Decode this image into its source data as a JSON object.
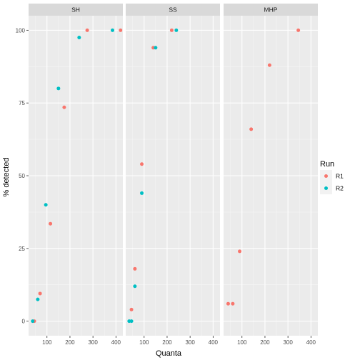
{
  "chart_data": {
    "type": "scatter",
    "xlabel": "Quanta",
    "ylabel": "% detected",
    "xlim": [
      20,
      430
    ],
    "ylim": [
      -5,
      105
    ],
    "x_ticks": [
      100,
      200,
      300,
      400
    ],
    "y_ticks": [
      0,
      25,
      50,
      75,
      100
    ],
    "grid": true,
    "legend": {
      "title": "Run",
      "position": "right"
    },
    "series": [
      {
        "name": "R1",
        "color": "#F8766D"
      },
      {
        "name": "R2",
        "color": "#00BFC4"
      }
    ],
    "panels": [
      {
        "label": "SH",
        "points": [
          {
            "series": "R1",
            "x": 45,
            "y": 0
          },
          {
            "series": "R1",
            "x": 70,
            "y": 9.5
          },
          {
            "series": "R1",
            "x": 115,
            "y": 33.5
          },
          {
            "series": "R1",
            "x": 175,
            "y": 73.5
          },
          {
            "series": "R1",
            "x": 275,
            "y": 100
          },
          {
            "series": "R1",
            "x": 420,
            "y": 100
          },
          {
            "series": "R2",
            "x": 38,
            "y": 0
          },
          {
            "series": "R2",
            "x": 60,
            "y": 7.5
          },
          {
            "series": "R2",
            "x": 95,
            "y": 40
          },
          {
            "series": "R2",
            "x": 150,
            "y": 80
          },
          {
            "series": "R2",
            "x": 240,
            "y": 97.5
          },
          {
            "series": "R2",
            "x": 385,
            "y": 100
          }
        ]
      },
      {
        "label": "SS",
        "points": [
          {
            "series": "R1",
            "x": 45,
            "y": 4
          },
          {
            "series": "R1",
            "x": 60,
            "y": 18
          },
          {
            "series": "R1",
            "x": 90,
            "y": 54
          },
          {
            "series": "R1",
            "x": 140,
            "y": 94
          },
          {
            "series": "R1",
            "x": 220,
            "y": 100
          },
          {
            "series": "R2",
            "x": 35,
            "y": 0
          },
          {
            "series": "R2",
            "x": 45,
            "y": 0
          },
          {
            "series": "R2",
            "x": 60,
            "y": 12
          },
          {
            "series": "R2",
            "x": 90,
            "y": 44
          },
          {
            "series": "R2",
            "x": 150,
            "y": 94
          },
          {
            "series": "R2",
            "x": 240,
            "y": 100
          }
        ]
      },
      {
        "label": "MHP",
        "points": [
          {
            "series": "R1",
            "x": 40,
            "y": 6
          },
          {
            "series": "R1",
            "x": 60,
            "y": 6
          },
          {
            "series": "R1",
            "x": 90,
            "y": 24
          },
          {
            "series": "R1",
            "x": 140,
            "y": 66
          },
          {
            "series": "R1",
            "x": 220,
            "y": 88
          },
          {
            "series": "R1",
            "x": 345,
            "y": 100
          }
        ]
      }
    ]
  }
}
